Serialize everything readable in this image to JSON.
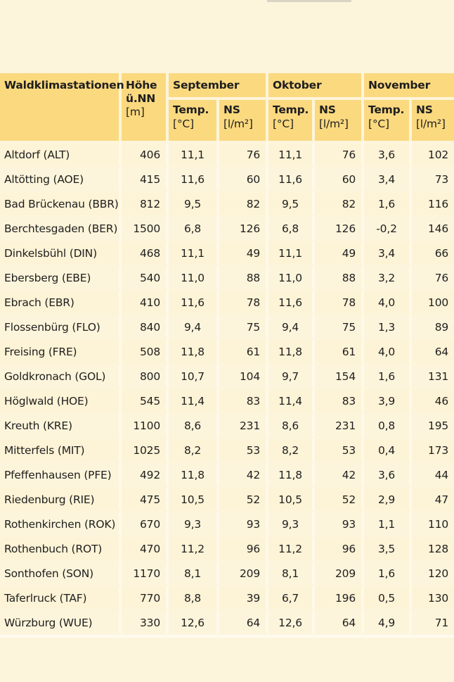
{
  "header": {
    "station": "Waldklimastationen",
    "height_line1": "Höhe",
    "height_line2": "ü.NN",
    "height_line3": "[m]",
    "months": [
      "September",
      "Oktober",
      "November"
    ],
    "temp_label": "Temp.",
    "temp_unit": "[°C]",
    "ns_label": "NS",
    "ns_unit": "[l/m²]"
  },
  "rows": [
    {
      "name": "Altdorf (ALT)",
      "h": "406",
      "t9": "11,1",
      "n9": "76",
      "t10": "11,1",
      "n10": "76",
      "t11": "3,6",
      "n11": "102"
    },
    {
      "name": "Altötting (AOE)",
      "h": "415",
      "t9": "11,6",
      "n9": "60",
      "t10": "11,6",
      "n10": "60",
      "t11": "3,4",
      "n11": "73"
    },
    {
      "name": "Bad Brückenau (BBR)",
      "h": "812",
      "t9": "9,5",
      "n9": "82",
      "t10": "9,5",
      "n10": "82",
      "t11": "1,6",
      "n11": "116"
    },
    {
      "name": "Berchtesgaden (BER)",
      "h": "1500",
      "t9": "6,8",
      "n9": "126",
      "t10": "6,8",
      "n10": "126",
      "t11": "-0,2",
      "n11": "146"
    },
    {
      "name": "Dinkelsbühl (DIN)",
      "h": "468",
      "t9": "11,1",
      "n9": "49",
      "t10": "11,1",
      "n10": "49",
      "t11": "3,4",
      "n11": "66"
    },
    {
      "name": "Ebersberg (EBE)",
      "h": "540",
      "t9": "11,0",
      "n9": "88",
      "t10": "11,0",
      "n10": "88",
      "t11": "3,2",
      "n11": "76"
    },
    {
      "name": "Ebrach (EBR)",
      "h": "410",
      "t9": "11,6",
      "n9": "78",
      "t10": "11,6",
      "n10": "78",
      "t11": "4,0",
      "n11": "100"
    },
    {
      "name": "Flossenbürg (FLO)",
      "h": "840",
      "t9": "9,4",
      "n9": "75",
      "t10": "9,4",
      "n10": "75",
      "t11": "1,3",
      "n11": "89"
    },
    {
      "name": "Freising (FRE)",
      "h": "508",
      "t9": "11,8",
      "n9": "61",
      "t10": "11,8",
      "n10": "61",
      "t11": "4,0",
      "n11": "64"
    },
    {
      "name": "Goldkronach (GOL)",
      "h": "800",
      "t9": "10,7",
      "n9": "104",
      "t10": "9,7",
      "n10": "154",
      "t11": "1,6",
      "n11": "131"
    },
    {
      "name": "Höglwald (HOE)",
      "h": "545",
      "t9": "11,4",
      "n9": "83",
      "t10": "11,4",
      "n10": "83",
      "t11": "3,9",
      "n11": "46"
    },
    {
      "name": "Kreuth (KRE)",
      "h": "1100",
      "t9": "8,6",
      "n9": "231",
      "t10": "8,6",
      "n10": "231",
      "t11": "0,8",
      "n11": "195"
    },
    {
      "name": "Mitterfels (MIT)",
      "h": "1025",
      "t9": "8,2",
      "n9": "53",
      "t10": "8,2",
      "n10": "53",
      "t11": "0,4",
      "n11": "173"
    },
    {
      "name": "Pfeffenhausen (PFE)",
      "h": "492",
      "t9": "11,8",
      "n9": "42",
      "t10": "11,8",
      "n10": "42",
      "t11": "3,6",
      "n11": "44"
    },
    {
      "name": "Riedenburg (RIE)",
      "h": "475",
      "t9": "10,5",
      "n9": "52",
      "t10": "10,5",
      "n10": "52",
      "t11": "2,9",
      "n11": "47"
    },
    {
      "name": "Rothenkirchen (ROK)",
      "h": "670",
      "t9": "9,3",
      "n9": "93",
      "t10": "9,3",
      "n10": "93",
      "t11": "1,1",
      "n11": "110"
    },
    {
      "name": "Rothenbuch (ROT)",
      "h": "470",
      "t9": "11,2",
      "n9": "96",
      "t10": "11,2",
      "n10": "96",
      "t11": "3,5",
      "n11": "128"
    },
    {
      "name": "Sonthofen (SON)",
      "h": "1170",
      "t9": "8,1",
      "n9": "209",
      "t10": "8,1",
      "n10": "209",
      "t11": "1,6",
      "n11": "120"
    },
    {
      "name": "Taferlruck (TAF)",
      "h": "770",
      "t9": "8,8",
      "n9": "39",
      "t10": "6,7",
      "n10": "196",
      "t11": "0,5",
      "n11": "130"
    },
    {
      "name": "Würzburg (WUE)",
      "h": "330",
      "t9": "12,6",
      "n9": "64",
      "t10": "12,6",
      "n10": "64",
      "t11": "4,9",
      "n11": "71"
    }
  ]
}
